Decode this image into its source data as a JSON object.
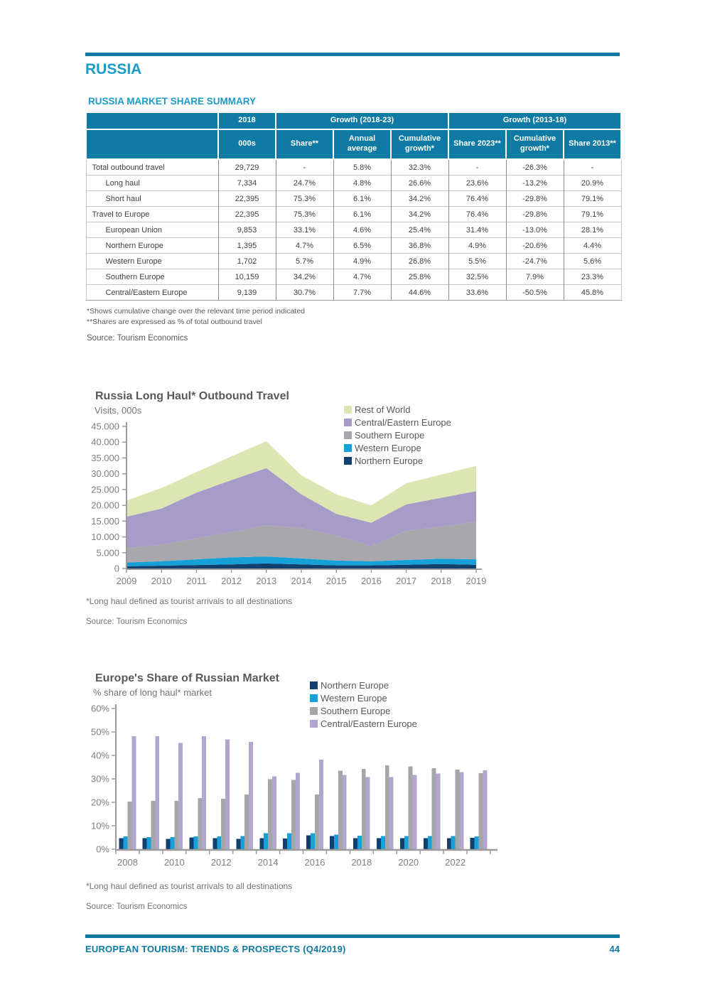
{
  "page": {
    "heading": "RUSSIA",
    "footer_title": "EUROPEAN TOURISM: TRENDS & PROSPECTS (Q4/2019)",
    "footer_page": "44",
    "accent_teal": "#0f7aa3",
    "accent_cyan": "#1b9bc7"
  },
  "table": {
    "title": "RUSSIA MARKET SHARE SUMMARY",
    "group_headers": [
      {
        "label": "2018",
        "span": 1
      },
      {
        "label": "Growth (2018-23)",
        "span": 3
      },
      {
        "label": "Growth (2013-18)",
        "span": 3
      }
    ],
    "column_headers": [
      "000s",
      "Share**",
      "Annual average",
      "Cumulative growth*",
      "Share 2023**",
      "Cumulative growth*",
      "Share 2013**"
    ],
    "rows": [
      {
        "label": "Total outbound travel",
        "indent": 0,
        "values": [
          "29,729",
          "-",
          "5.8%",
          "32.3%",
          "-",
          "-26.3%",
          "-"
        ]
      },
      {
        "label": "Long haul",
        "indent": 1,
        "values": [
          "7,334",
          "24.7%",
          "4.8%",
          "26.6%",
          "23.6%",
          "-13.2%",
          "20.9%"
        ]
      },
      {
        "label": "Short haul",
        "indent": 1,
        "values": [
          "22,395",
          "75.3%",
          "6.1%",
          "34.2%",
          "76.4%",
          "-29.8%",
          "79.1%"
        ]
      },
      {
        "label": "Travel to Europe",
        "indent": 0,
        "values": [
          "22,395",
          "75.3%",
          "6.1%",
          "34.2%",
          "76.4%",
          "-29.8%",
          "79.1%"
        ]
      },
      {
        "label": "European Union",
        "indent": 1,
        "values": [
          "9,853",
          "33.1%",
          "4.6%",
          "25.4%",
          "31.4%",
          "-13.0%",
          "28.1%"
        ]
      },
      {
        "label": "Northern Europe",
        "indent": 1,
        "values": [
          "1,395",
          "4.7%",
          "6.5%",
          "36.8%",
          "4.9%",
          "-20.6%",
          "4.4%"
        ]
      },
      {
        "label": "Western Europe",
        "indent": 1,
        "values": [
          "1,702",
          "5.7%",
          "4.9%",
          "26.8%",
          "5.5%",
          "-24.7%",
          "5.6%"
        ]
      },
      {
        "label": "Southern Europe",
        "indent": 1,
        "values": [
          "10,159",
          "34.2%",
          "4.7%",
          "25.8%",
          "32.5%",
          "7.9%",
          "23.3%"
        ]
      },
      {
        "label": "Central/Eastern Europe",
        "indent": 1,
        "values": [
          "9,139",
          "30.7%",
          "7.7%",
          "44.6%",
          "33.6%",
          "-50.5%",
          "45.8%"
        ]
      }
    ],
    "footnote1": "*Shows cumulative change over the relevant time period indicated",
    "footnote2": "**Shares are expressed as % of total outbound travel",
    "source": "Source: Tourism Economics"
  },
  "chart_data": [
    {
      "type": "area",
      "title": "Russia Long Haul* Outbound Travel",
      "subtitle": "Visits, 000s",
      "x": [
        2009,
        2010,
        2011,
        2012,
        2013,
        2014,
        2015,
        2016,
        2017,
        2018,
        2019
      ],
      "series": [
        {
          "name": "Northern Europe",
          "color": "#123f6d",
          "values": [
            700,
            900,
            1100,
            1300,
            1600,
            1300,
            1000,
            1000,
            1200,
            1395,
            1200
          ]
        },
        {
          "name": "Western Europe",
          "color": "#16a0d8",
          "values": [
            1200,
            1400,
            1800,
            2200,
            2200,
            1900,
            1500,
            1300,
            1500,
            1702,
            1700
          ]
        },
        {
          "name": "Southern Europe",
          "color": "#a8a7ac",
          "values": [
            4500,
            5300,
            6600,
            8000,
            9900,
            9600,
            8000,
            4700,
            9300,
            10159,
            11900
          ]
        },
        {
          "name": "Central/Eastern Europe",
          "color": "#a79cc8",
          "values": [
            10000,
            11400,
            14500,
            16500,
            18100,
            10700,
            6800,
            7500,
            8300,
            9139,
            9700
          ]
        },
        {
          "name": "Rest of World",
          "color": "#dce6b2",
          "values": [
            5100,
            6500,
            6500,
            7500,
            8500,
            6000,
            6200,
            5500,
            6700,
            7334,
            8000
          ]
        }
      ],
      "legend": [
        {
          "label": "Rest of World",
          "color": "#dce6b2"
        },
        {
          "label": "Central/Eastern Europe",
          "color": "#a79cc8"
        },
        {
          "label": "Southern Europe",
          "color": "#a8a7ac"
        },
        {
          "label": "Western Europe",
          "color": "#16a0d8"
        },
        {
          "label": "Northern Europe",
          "color": "#123f6d"
        }
      ],
      "ylim": [
        0,
        45000
      ],
      "yticks": [
        {
          "v": 0,
          "label": "0"
        },
        {
          "v": 5000,
          "label": "5.000"
        },
        {
          "v": 10000,
          "label": "10.000"
        },
        {
          "v": 15000,
          "label": "15.000"
        },
        {
          "v": 20000,
          "label": "20.000"
        },
        {
          "v": 25000,
          "label": "25.000"
        },
        {
          "v": 30000,
          "label": "30.000"
        },
        {
          "v": 35000,
          "label": "35.000"
        },
        {
          "v": 40000,
          "label": "40.000"
        },
        {
          "v": 45000,
          "label": "45.000"
        }
      ],
      "grid": false,
      "legend_position": "top-right",
      "footnote": "*Long haul defined as tourist arrivals to all destinations",
      "source": "Source: Tourism Economics"
    },
    {
      "type": "bar",
      "title": "Europe's Share of Russian Market",
      "subtitle": "% share of long haul* market",
      "x": [
        2008,
        2009,
        2010,
        2011,
        2012,
        2013,
        2014,
        2015,
        2016,
        2017,
        2018,
        2019,
        2020,
        2021,
        2022,
        2023
      ],
      "xtick_labels": [
        "2008",
        "",
        "2010",
        "",
        "2012",
        "",
        "2014",
        "",
        "2016",
        "",
        "2018",
        "",
        "2020",
        "",
        "2022",
        ""
      ],
      "series": [
        {
          "name": "Northern Europe",
          "color": "#123f6d",
          "values": [
            4.7,
            4.7,
            4.4,
            5.0,
            4.7,
            4.4,
            4.7,
            4.6,
            5.9,
            5.6,
            4.7,
            4.7,
            4.7,
            4.7,
            4.7,
            4.9
          ]
        },
        {
          "name": "Western Europe",
          "color": "#199fd9",
          "values": [
            5.5,
            5.2,
            5.1,
            5.5,
            5.5,
            5.6,
            6.8,
            6.8,
            6.8,
            6.2,
            5.7,
            5.6,
            5.6,
            5.6,
            5.6,
            5.5
          ]
        },
        {
          "name": "Southern Europe",
          "color": "#a6a6a6",
          "values": [
            20.3,
            20.6,
            20.6,
            21.8,
            21.5,
            23.3,
            29.9,
            29.6,
            23.3,
            33.5,
            34.2,
            35.8,
            35.3,
            34.6,
            34.0,
            32.5
          ]
        },
        {
          "name": "Central/Eastern Europe",
          "color": "#b3a6ce",
          "values": [
            48.2,
            48.2,
            45.3,
            48.2,
            46.8,
            45.8,
            31.1,
            32.6,
            38.2,
            31.7,
            30.7,
            30.8,
            31.7,
            32.2,
            32.9,
            33.6
          ]
        }
      ],
      "legend": [
        {
          "label": "Northern Europe",
          "color": "#123f6d"
        },
        {
          "label": "Western Europe",
          "color": "#199fd9"
        },
        {
          "label": "Southern Europe",
          "color": "#a6a6a6"
        },
        {
          "label": "Central/Eastern Europe",
          "color": "#b3a6ce"
        }
      ],
      "ylim": [
        0,
        60
      ],
      "yticks": [
        {
          "v": 0,
          "label": "0%"
        },
        {
          "v": 10,
          "label": "10%"
        },
        {
          "v": 20,
          "label": "20%"
        },
        {
          "v": 30,
          "label": "30%"
        },
        {
          "v": 40,
          "label": "40%"
        },
        {
          "v": 50,
          "label": "50%"
        },
        {
          "v": 60,
          "label": "60%"
        }
      ],
      "grid": false,
      "legend_position": "top-right",
      "footnote": "*Long haul defined as tourist arrivals to all destinations",
      "source": "Source: Tourism Economics"
    }
  ]
}
